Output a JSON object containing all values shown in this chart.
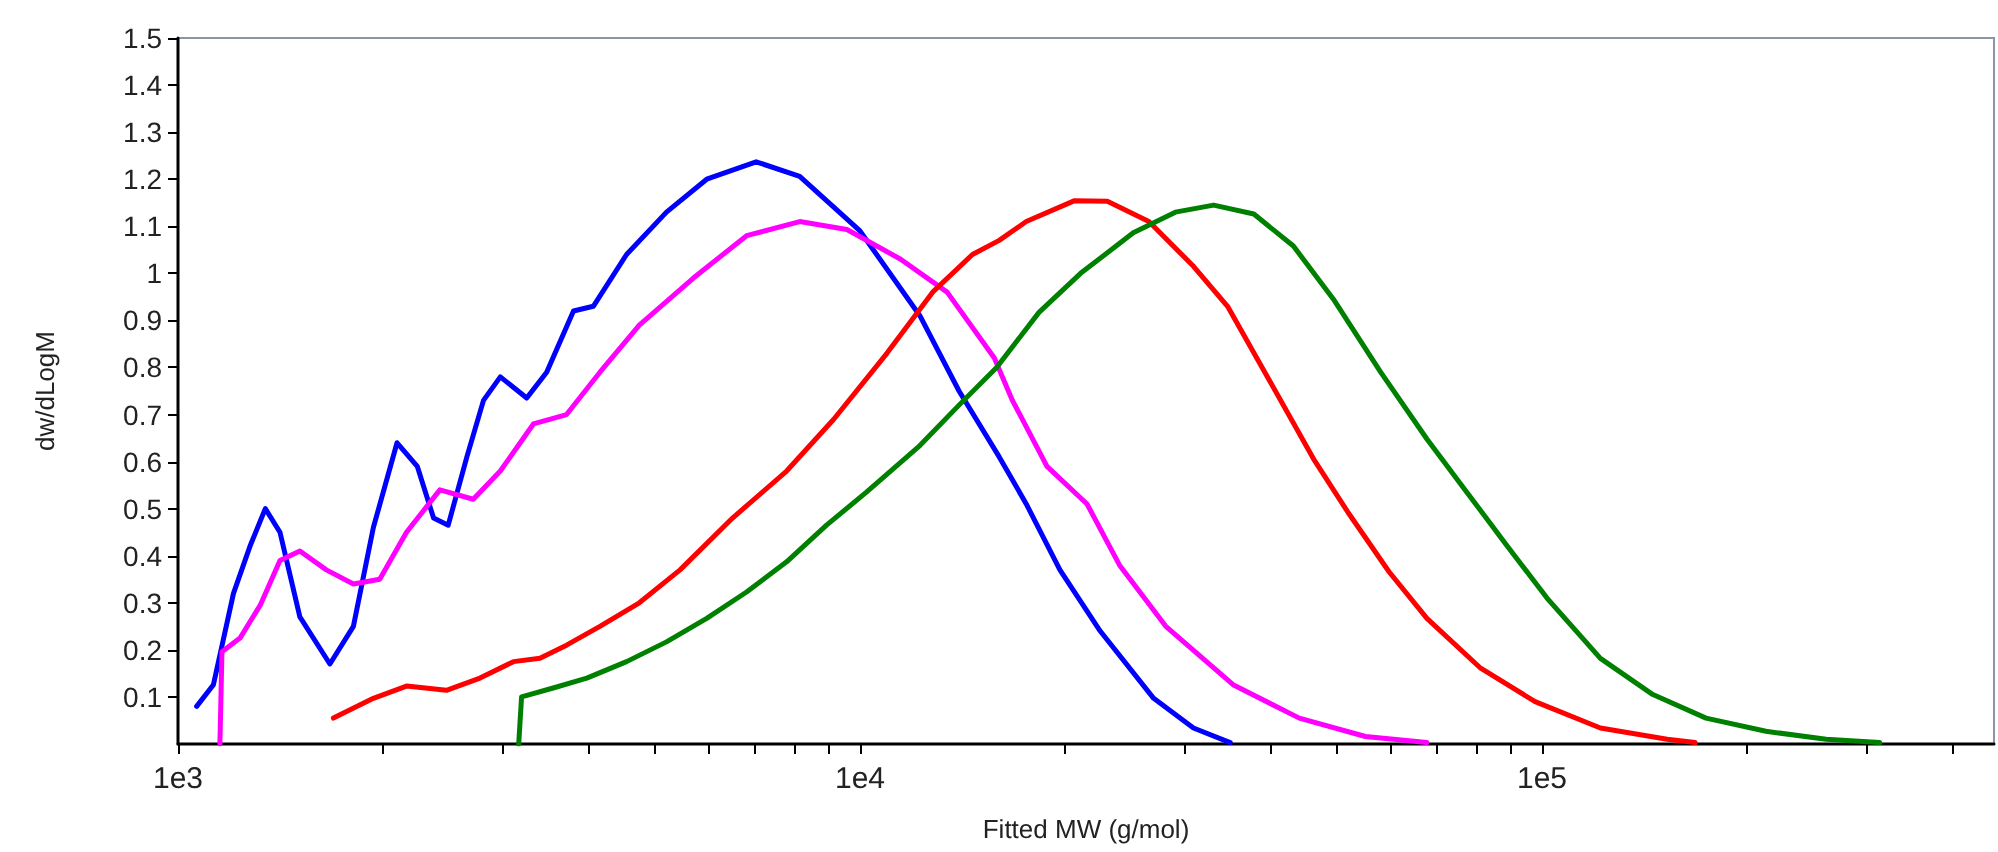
{
  "chart_data": {
    "type": "line",
    "xlabel": "Fitted MW (g/mol)",
    "ylabel": "dw/dLogM",
    "log": "x",
    "grid": false,
    "marker": "none",
    "line_style": "solid",
    "xlim": [
      1000,
      460000
    ],
    "xticks": [
      {
        "value": 1000,
        "label": "1e3"
      },
      {
        "value": 2000,
        "label": null
      },
      {
        "value": 3000,
        "label": null
      },
      {
        "value": 4000,
        "label": null
      },
      {
        "value": 5000,
        "label": null
      },
      {
        "value": 6000,
        "label": null
      },
      {
        "value": 7000,
        "label": null
      },
      {
        "value": 8000,
        "label": null
      },
      {
        "value": 9000,
        "label": null
      },
      {
        "value": 10000,
        "label": "1e4"
      },
      {
        "value": 20000,
        "label": null
      },
      {
        "value": 30000,
        "label": null
      },
      {
        "value": 40000,
        "label": null
      },
      {
        "value": 50000,
        "label": null
      },
      {
        "value": 60000,
        "label": null
      },
      {
        "value": 70000,
        "label": null
      },
      {
        "value": 80000,
        "label": null
      },
      {
        "value": 90000,
        "label": null
      },
      {
        "value": 100000,
        "label": "1e5"
      },
      {
        "value": 200000,
        "label": null
      },
      {
        "value": 300000,
        "label": null
      },
      {
        "value": 400000,
        "label": null
      }
    ],
    "ylim": [
      0,
      1.5
    ],
    "yticks": [
      0.1,
      0.2,
      0.3,
      0.4,
      0.5,
      0.6,
      0.7,
      0.8,
      0.9,
      1,
      1.1,
      1.2,
      1.3,
      1.4,
      1.5
    ],
    "series": [
      {
        "color": "#0000ff",
        "x": [
          1065,
          1127,
          1206,
          1275,
          1343,
          1411,
          1509,
          1670,
          1808,
          1934,
          2095,
          2243,
          2370,
          2490,
          2652,
          2805,
          2969,
          3246,
          3472,
          3801,
          4064,
          4547,
          5203,
          5960,
          7042,
          8158,
          10000,
          12240,
          13970,
          16000,
          17530,
          19640,
          22500,
          26950,
          30830,
          34900
        ],
        "values": [
          0.08,
          0.126,
          0.32,
          0.42,
          0.5,
          0.45,
          0.27,
          0.17,
          0.25,
          0.46,
          0.64,
          0.59,
          0.48,
          0.465,
          0.61,
          0.73,
          0.78,
          0.735,
          0.79,
          0.92,
          0.93,
          1.04,
          1.13,
          1.2,
          1.237,
          1.206,
          1.09,
          0.91,
          0.75,
          0.61,
          0.51,
          0.37,
          0.24,
          0.097,
          0.034,
          0.003
        ]
      },
      {
        "color": "#ff00ff",
        "x": [
          1152,
          1160,
          1233,
          1320,
          1411,
          1509,
          1650,
          1808,
          1976,
          2163,
          2421,
          2710,
          2969,
          3320,
          3713,
          4156,
          4747,
          5698,
          6819,
          8158,
          9568,
          11470,
          13420,
          15740,
          16730,
          18800,
          21520,
          24020,
          28080,
          35240,
          44070,
          55100,
          67800
        ],
        "values": [
          0,
          0.196,
          0.225,
          0.295,
          0.39,
          0.41,
          0.37,
          0.34,
          0.35,
          0.45,
          0.54,
          0.52,
          0.58,
          0.68,
          0.7,
          0.79,
          0.89,
          0.99,
          1.08,
          1.11,
          1.093,
          1.03,
          0.96,
          0.82,
          0.73,
          0.59,
          0.51,
          0.38,
          0.25,
          0.126,
          0.055,
          0.016,
          0.003
        ]
      },
      {
        "color": "#ff0000",
        "x": [
          1690,
          1934,
          2163,
          2475,
          2772,
          3104,
          3394,
          3713,
          4156,
          4747,
          5447,
          6503,
          7806,
          9152,
          10950,
          12780,
          14620,
          16000,
          17530,
          20600,
          23050,
          26520,
          30830,
          34590,
          39750,
          46230,
          51900,
          59660,
          67800,
          81300,
          97700,
          121800,
          152600,
          167700
        ],
        "values": [
          0.055,
          0.097,
          0.123,
          0.114,
          0.14,
          0.175,
          0.182,
          0.21,
          0.25,
          0.3,
          0.37,
          0.48,
          0.58,
          0.69,
          0.83,
          0.96,
          1.04,
          1.07,
          1.11,
          1.154,
          1.153,
          1.11,
          1.015,
          0.93,
          0.775,
          0.606,
          0.493,
          0.366,
          0.267,
          0.161,
          0.09,
          0.034,
          0.01,
          0.003
        ]
      },
      {
        "color": "#008000",
        "x": [
          3159,
          3190,
          3549,
          3976,
          4547,
          5203,
          5960,
          6819,
          7806,
          8932,
          10220,
          12240,
          13970,
          15860,
          18300,
          21060,
          25160,
          29000,
          33000,
          37800,
          43200,
          49450,
          58000,
          67800,
          77580,
          88800,
          101700,
          121800,
          145400,
          174000,
          213000,
          261000,
          312800
        ],
        "values": [
          0,
          0.1,
          0.119,
          0.14,
          0.175,
          0.217,
          0.267,
          0.323,
          0.387,
          0.465,
          0.535,
          0.634,
          0.72,
          0.8,
          0.917,
          1,
          1.086,
          1.13,
          1.145,
          1.126,
          1.058,
          0.945,
          0.79,
          0.648,
          0.535,
          0.422,
          0.31,
          0.182,
          0.105,
          0.055,
          0.027,
          0.01,
          0.003
        ]
      }
    ]
  }
}
